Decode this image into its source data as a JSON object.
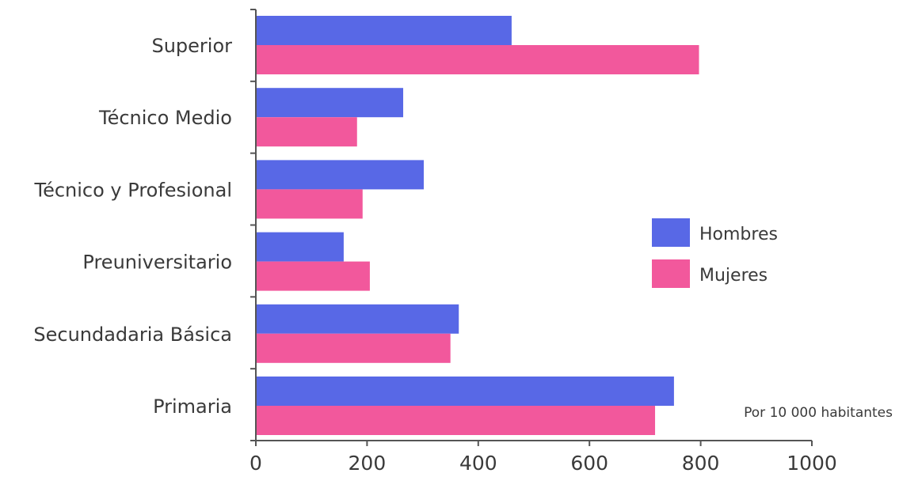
{
  "chart_data": {
    "type": "bar",
    "orientation": "horizontal",
    "categories": [
      "Superior",
      "Técnico  Medio",
      "Técnico y Profesional",
      "Preuniversitario",
      "Secundadaria Básica",
      "Primaria"
    ],
    "series": [
      {
        "name": "Hombres",
        "color": "#5868e6",
        "values": [
          460,
          265,
          302,
          158,
          365,
          752
        ]
      },
      {
        "name": "Mujeres",
        "color": "#f2589c",
        "values": [
          797,
          182,
          192,
          205,
          350,
          718
        ]
      }
    ],
    "xlim": [
      0,
      1000
    ],
    "xticks": [
      0,
      200,
      400,
      600,
      800,
      1000
    ],
    "xtick_labels": [
      "0",
      "200",
      "400",
      "600",
      "800",
      "1000"
    ],
    "note": "Por 10 000 habitantes",
    "legend_position": "right",
    "grid": false,
    "title": "",
    "xlabel": "",
    "ylabel": ""
  }
}
